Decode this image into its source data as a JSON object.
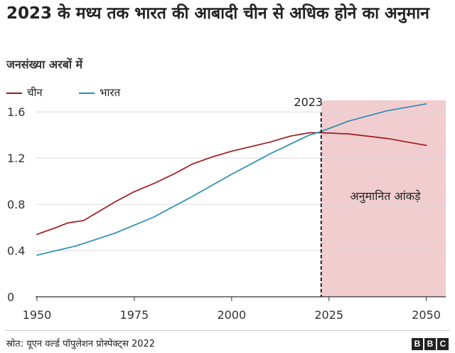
{
  "header": {
    "title": "2023 के मध्य तक भारत की आबादी चीन से अधिक होने का अनुमान",
    "subtitle": "जनसंख्या अरबों में"
  },
  "footer": {
    "source": "स्रोत: यूएन वर्ल्ड पॉपुलेशन प्रोस्पेक्ट्स 2022",
    "logo_letters": [
      "B",
      "B",
      "C"
    ]
  },
  "colors": {
    "china": "#a01b1b",
    "india": "#2b8db0",
    "projection_band": "#f2cdd0",
    "grid": "#d9d9d9",
    "marker_line": "#222222"
  },
  "chart_data": {
    "type": "line",
    "title": "2023 के मध्य तक भारत की आबादी चीन से अधिक होने का अनुमान",
    "ylabel": "जनसंख्या अरबों में",
    "xlabel": "",
    "xlim": [
      1950,
      2055
    ],
    "ylim": [
      0,
      1.7
    ],
    "x_ticks": [
      1950,
      1975,
      2000,
      2025,
      2050
    ],
    "y_ticks": [
      0,
      0.4,
      0.8,
      1.2,
      1.6
    ],
    "y_tick_labels": [
      "0",
      "0.4",
      "0.8",
      "1.2",
      "1.6"
    ],
    "grid": true,
    "legend_position": "top-left",
    "marker": {
      "x": 2023,
      "label": "2023"
    },
    "projection": {
      "from": 2023,
      "to": 2055,
      "label": "अनुमानित आंकड़े"
    },
    "series": [
      {
        "key": "china",
        "name": "चीन",
        "x": [
          1950,
          1955,
          1958,
          1960,
          1962,
          1965,
          1970,
          1975,
          1980,
          1985,
          1990,
          1995,
          2000,
          2005,
          2010,
          2015,
          2020,
          2023,
          2030,
          2040,
          2050
        ],
        "values": [
          0.54,
          0.6,
          0.64,
          0.65,
          0.66,
          0.72,
          0.82,
          0.91,
          0.98,
          1.06,
          1.15,
          1.21,
          1.26,
          1.3,
          1.34,
          1.39,
          1.42,
          1.42,
          1.41,
          1.37,
          1.31
        ]
      },
      {
        "key": "india",
        "name": "भारत",
        "x": [
          1950,
          1960,
          1970,
          1980,
          1990,
          2000,
          2010,
          2020,
          2023,
          2030,
          2040,
          2050
        ],
        "values": [
          0.36,
          0.44,
          0.55,
          0.69,
          0.87,
          1.06,
          1.24,
          1.4,
          1.43,
          1.52,
          1.61,
          1.67
        ]
      }
    ]
  }
}
